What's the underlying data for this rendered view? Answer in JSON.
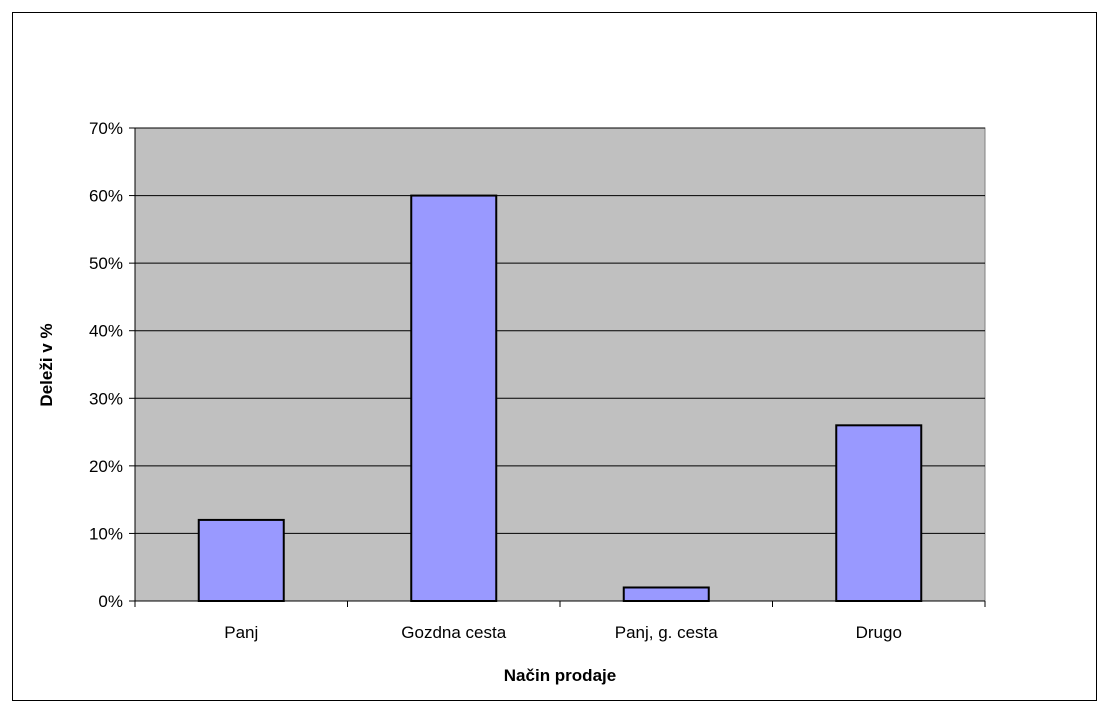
{
  "chart_data": {
    "type": "bar",
    "title": "",
    "xlabel": "Način prodaje",
    "ylabel": "Deleži v %",
    "categories": [
      "Panj",
      "Gozdna cesta",
      "Panj, g. cesta",
      "Drugo"
    ],
    "values": [
      12,
      60,
      2,
      26
    ],
    "ylim": [
      0,
      70
    ],
    "yticks": [
      0,
      10,
      20,
      30,
      40,
      50,
      60,
      70
    ],
    "ytick_labels": [
      "0%",
      "10%",
      "20%",
      "30%",
      "40%",
      "50%",
      "60%",
      "70%"
    ],
    "grid": true,
    "legend": "none",
    "colors": {
      "bar_fill": "#9999ff",
      "bar_stroke": "#000000",
      "plot_background": "#c0c0c0",
      "gridline": "#000000"
    }
  }
}
